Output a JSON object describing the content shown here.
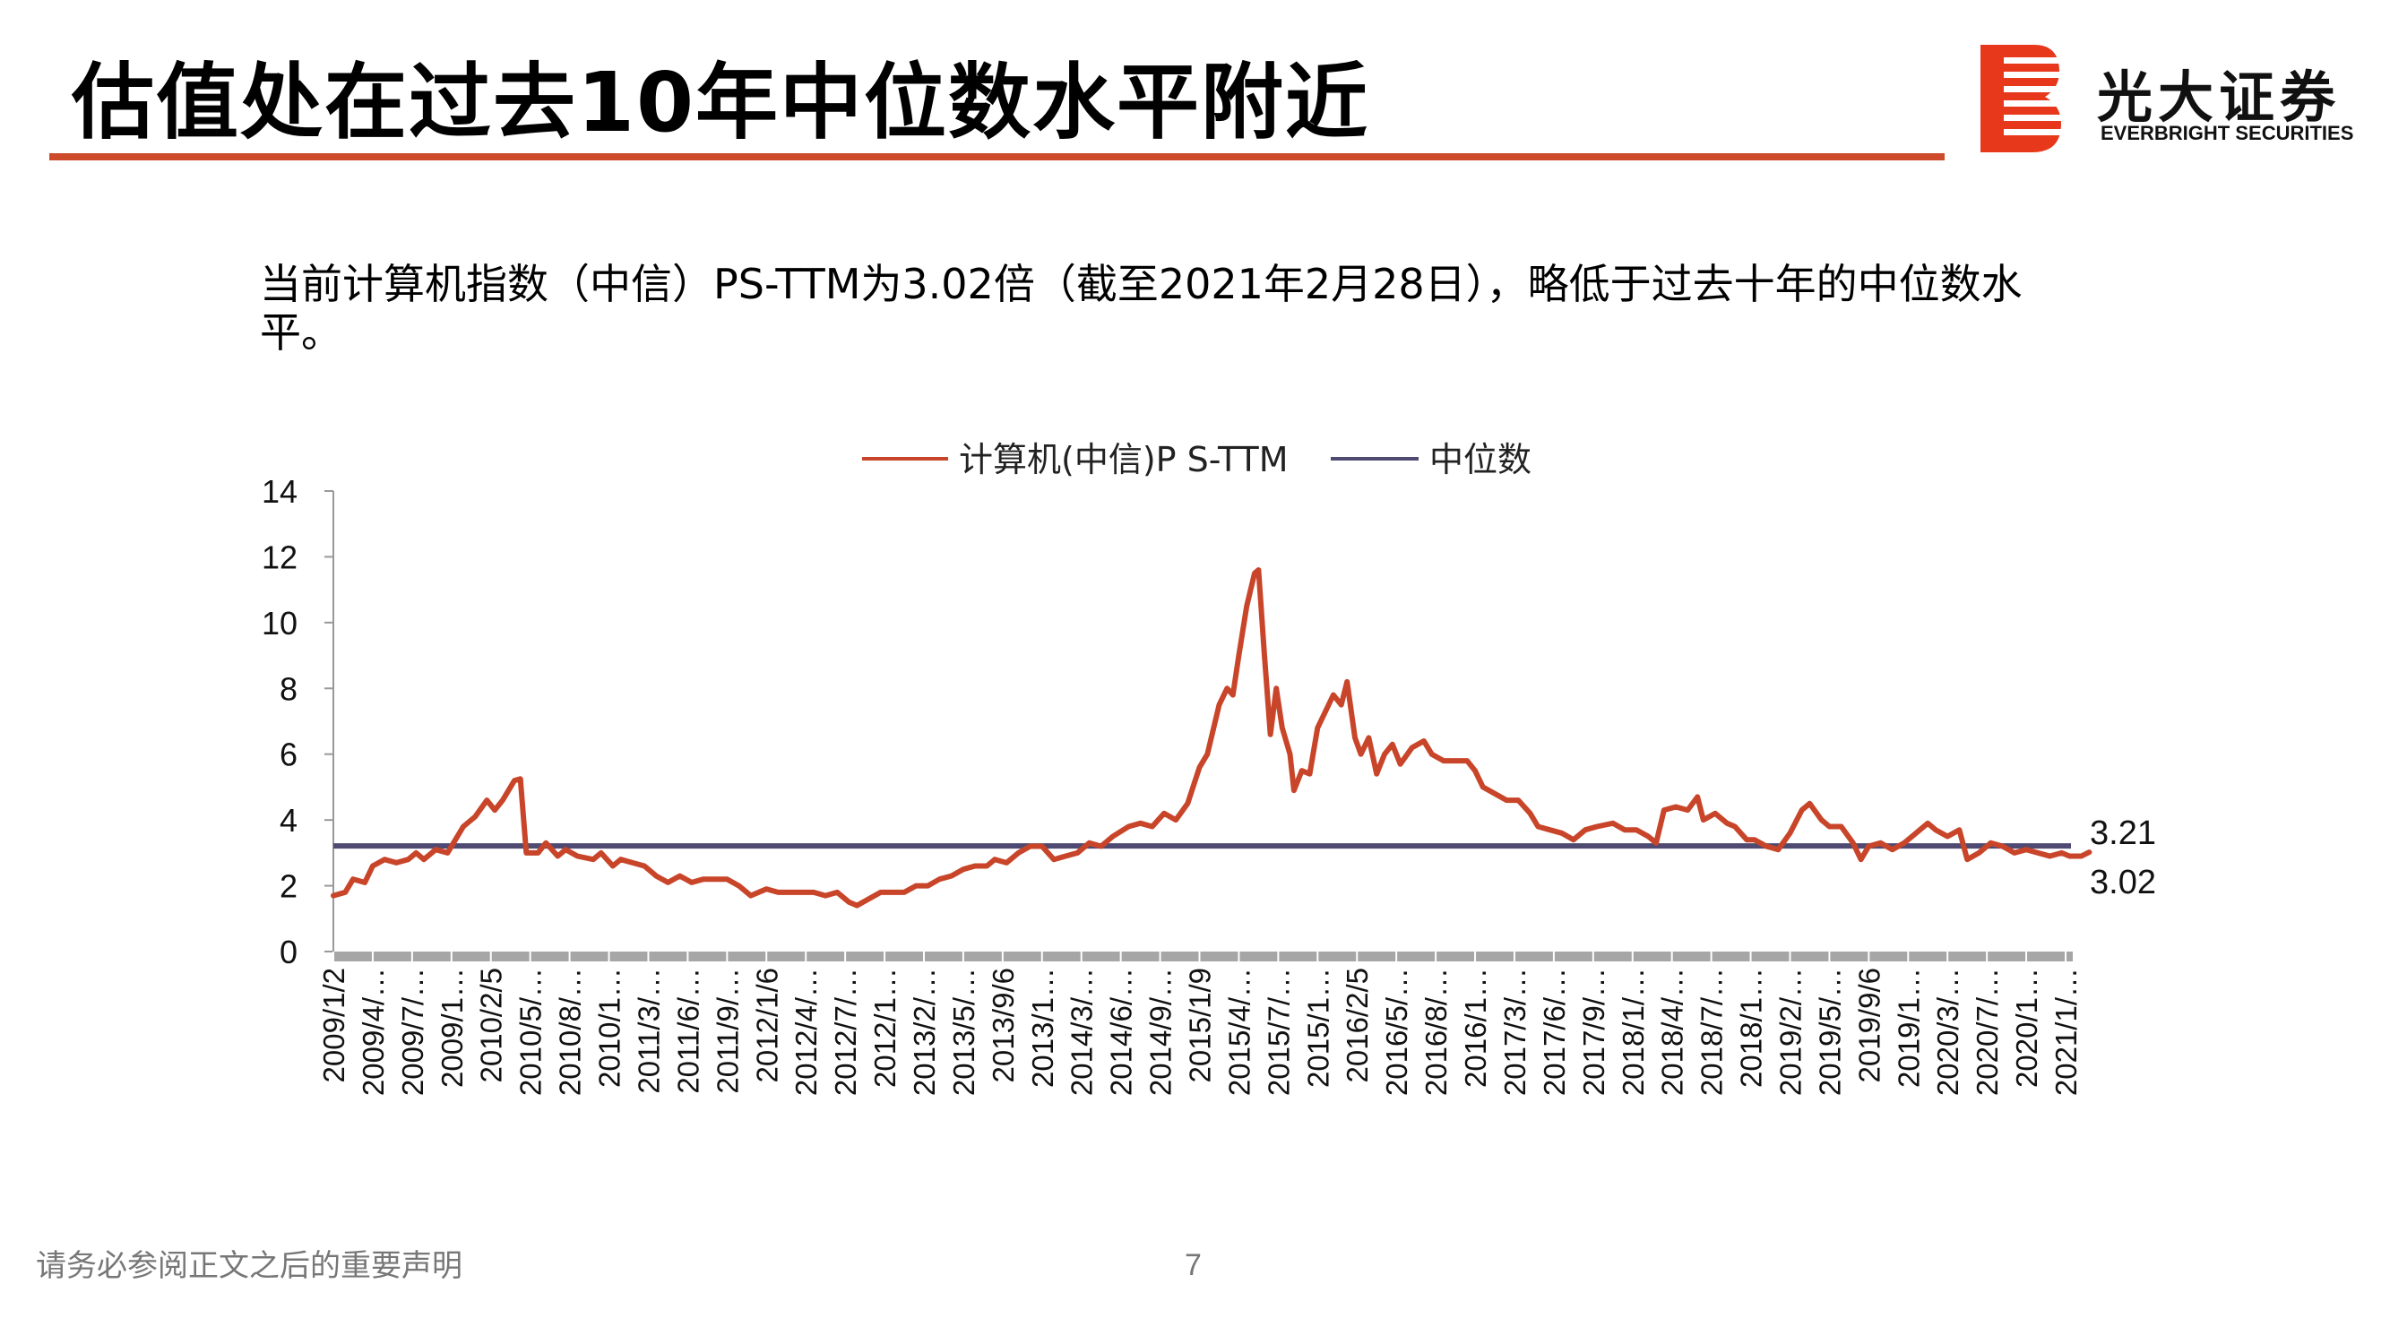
{
  "page": {
    "title": "估值处在过去10年中位数水平附近",
    "description": "当前计算机指数（中信）PS-TTM为3.02倍（截至2021年2月28日），略低于过去十年的中位数水平。",
    "footer_note": "请务必参阅正文之后的重要声明",
    "page_number": "7"
  },
  "logo": {
    "cn": "光大证券",
    "en": "EVERBRIGHT SECURITIES",
    "color": "#e8381c"
  },
  "chart_data": {
    "type": "line",
    "title": "",
    "xlabel": "",
    "ylabel": "",
    "ylim": [
      0,
      14
    ],
    "yticks": [
      "0",
      "2",
      "4",
      "6",
      "8",
      "10",
      "12",
      "14"
    ],
    "legend_position": "top-center",
    "categories": [
      "2009/1/2",
      "2009/4/…",
      "2009/7/…",
      "2009/1…",
      "2010/2/5",
      "2010/5/…",
      "2010/8/…",
      "2010/1…",
      "2011/3/…",
      "2011/6/…",
      "2011/9/…",
      "2012/1/6",
      "2012/4/…",
      "2012/7/…",
      "2012/1…",
      "2013/2/…",
      "2013/5/…",
      "2013/9/6",
      "2013/1…",
      "2014/3/…",
      "2014/6/…",
      "2014/9/…",
      "2015/1/9",
      "2015/4/…",
      "2015/7/…",
      "2015/1…",
      "2016/2/5",
      "2016/5/…",
      "2016/8/…",
      "2016/1…",
      "2017/3/…",
      "2017/6/…",
      "2017/9/…",
      "2018/1/…",
      "2018/4/…",
      "2018/7/…",
      "2018/1…",
      "2019/2/…",
      "2019/5/…",
      "2019/9/6",
      "2019/1…",
      "2020/3/…",
      "2020/7/…",
      "2020/1…",
      "2021/1/…"
    ],
    "series": [
      {
        "name": "计算机(中信)P S-TTM",
        "color": "#c8452a",
        "values": [
          [
            0,
            1.7
          ],
          [
            0.3,
            1.8
          ],
          [
            0.5,
            2.2
          ],
          [
            0.8,
            2.1
          ],
          [
            1.0,
            2.6
          ],
          [
            1.3,
            2.8
          ],
          [
            1.6,
            2.7
          ],
          [
            1.9,
            2.8
          ],
          [
            2.1,
            3.0
          ],
          [
            2.3,
            2.8
          ],
          [
            2.6,
            3.1
          ],
          [
            2.9,
            3.0
          ],
          [
            3.1,
            3.4
          ],
          [
            3.3,
            3.8
          ],
          [
            3.6,
            4.1
          ],
          [
            3.9,
            4.6
          ],
          [
            4.1,
            4.3
          ],
          [
            4.3,
            4.6
          ],
          [
            4.6,
            5.2
          ],
          [
            4.75,
            5.25
          ],
          [
            4.9,
            3.0
          ],
          [
            5.2,
            3.0
          ],
          [
            5.4,
            3.3
          ],
          [
            5.7,
            2.9
          ],
          [
            5.9,
            3.1
          ],
          [
            6.2,
            2.9
          ],
          [
            6.6,
            2.8
          ],
          [
            6.8,
            3.0
          ],
          [
            7.1,
            2.6
          ],
          [
            7.3,
            2.8
          ],
          [
            7.6,
            2.7
          ],
          [
            7.9,
            2.6
          ],
          [
            8.2,
            2.3
          ],
          [
            8.5,
            2.1
          ],
          [
            8.8,
            2.3
          ],
          [
            9.1,
            2.1
          ],
          [
            9.4,
            2.2
          ],
          [
            9.7,
            2.2
          ],
          [
            10.0,
            2.2
          ],
          [
            10.3,
            2.0
          ],
          [
            10.6,
            1.7
          ],
          [
            11.0,
            1.9
          ],
          [
            11.3,
            1.8
          ],
          [
            11.6,
            1.8
          ],
          [
            11.9,
            1.8
          ],
          [
            12.2,
            1.8
          ],
          [
            12.5,
            1.7
          ],
          [
            12.8,
            1.8
          ],
          [
            13.1,
            1.5
          ],
          [
            13.3,
            1.4
          ],
          [
            13.6,
            1.6
          ],
          [
            13.9,
            1.8
          ],
          [
            14.2,
            1.8
          ],
          [
            14.5,
            1.8
          ],
          [
            14.8,
            2.0
          ],
          [
            15.1,
            2.0
          ],
          [
            15.4,
            2.2
          ],
          [
            15.7,
            2.3
          ],
          [
            16.0,
            2.5
          ],
          [
            16.3,
            2.6
          ],
          [
            16.6,
            2.6
          ],
          [
            16.8,
            2.8
          ],
          [
            17.1,
            2.7
          ],
          [
            17.4,
            3.0
          ],
          [
            17.7,
            3.2
          ],
          [
            18.0,
            3.2
          ],
          [
            18.3,
            2.8
          ],
          [
            18.6,
            2.9
          ],
          [
            18.9,
            3.0
          ],
          [
            19.2,
            3.3
          ],
          [
            19.5,
            3.2
          ],
          [
            19.8,
            3.5
          ],
          [
            20.2,
            3.8
          ],
          [
            20.5,
            3.9
          ],
          [
            20.8,
            3.8
          ],
          [
            21.1,
            4.2
          ],
          [
            21.4,
            4.0
          ],
          [
            21.7,
            4.5
          ],
          [
            22.0,
            5.6
          ],
          [
            22.2,
            6.0
          ],
          [
            22.5,
            7.5
          ],
          [
            22.7,
            8.0
          ],
          [
            22.85,
            7.8
          ],
          [
            23.0,
            9.0
          ],
          [
            23.2,
            10.5
          ],
          [
            23.4,
            11.5
          ],
          [
            23.5,
            11.6
          ],
          [
            23.65,
            9.0
          ],
          [
            23.8,
            6.6
          ],
          [
            23.95,
            8.0
          ],
          [
            24.1,
            6.8
          ],
          [
            24.3,
            6.0
          ],
          [
            24.4,
            4.9
          ],
          [
            24.6,
            5.5
          ],
          [
            24.8,
            5.4
          ],
          [
            25.0,
            6.8
          ],
          [
            25.2,
            7.3
          ],
          [
            25.4,
            7.8
          ],
          [
            25.6,
            7.5
          ],
          [
            25.75,
            8.2
          ],
          [
            25.95,
            6.5
          ],
          [
            26.1,
            6.0
          ],
          [
            26.3,
            6.5
          ],
          [
            26.5,
            5.4
          ],
          [
            26.7,
            6.0
          ],
          [
            26.9,
            6.3
          ],
          [
            27.1,
            5.7
          ],
          [
            27.4,
            6.2
          ],
          [
            27.7,
            6.4
          ],
          [
            27.9,
            6.0
          ],
          [
            28.2,
            5.8
          ],
          [
            28.5,
            5.8
          ],
          [
            28.8,
            5.8
          ],
          [
            29.0,
            5.5
          ],
          [
            29.2,
            5.0
          ],
          [
            29.5,
            4.8
          ],
          [
            29.8,
            4.6
          ],
          [
            30.1,
            4.6
          ],
          [
            30.4,
            4.2
          ],
          [
            30.6,
            3.8
          ],
          [
            30.9,
            3.7
          ],
          [
            31.2,
            3.6
          ],
          [
            31.5,
            3.4
          ],
          [
            31.8,
            3.7
          ],
          [
            32.1,
            3.8
          ],
          [
            32.5,
            3.9
          ],
          [
            32.8,
            3.7
          ],
          [
            33.1,
            3.7
          ],
          [
            33.4,
            3.5
          ],
          [
            33.6,
            3.3
          ],
          [
            33.8,
            4.3
          ],
          [
            34.1,
            4.4
          ],
          [
            34.4,
            4.3
          ],
          [
            34.65,
            4.7
          ],
          [
            34.8,
            4.0
          ],
          [
            35.1,
            4.2
          ],
          [
            35.4,
            3.9
          ],
          [
            35.6,
            3.8
          ],
          [
            35.9,
            3.4
          ],
          [
            36.1,
            3.4
          ],
          [
            36.4,
            3.2
          ],
          [
            36.7,
            3.1
          ],
          [
            37.0,
            3.6
          ],
          [
            37.3,
            4.3
          ],
          [
            37.5,
            4.5
          ],
          [
            37.8,
            4.0
          ],
          [
            38.0,
            3.8
          ],
          [
            38.3,
            3.8
          ],
          [
            38.6,
            3.3
          ],
          [
            38.8,
            2.8
          ],
          [
            39.0,
            3.2
          ],
          [
            39.3,
            3.3
          ],
          [
            39.6,
            3.1
          ],
          [
            39.9,
            3.3
          ],
          [
            40.2,
            3.6
          ],
          [
            40.5,
            3.9
          ],
          [
            40.7,
            3.7
          ],
          [
            41.0,
            3.5
          ],
          [
            41.3,
            3.7
          ],
          [
            41.5,
            2.8
          ],
          [
            41.8,
            3.0
          ],
          [
            42.1,
            3.3
          ],
          [
            42.4,
            3.2
          ],
          [
            42.7,
            3.0
          ],
          [
            43.0,
            3.1
          ],
          [
            43.3,
            3.0
          ],
          [
            43.6,
            2.9
          ],
          [
            43.9,
            3.0
          ],
          [
            44.1,
            2.9
          ],
          [
            44.4,
            2.9
          ],
          [
            44.6,
            3.02
          ]
        ]
      },
      {
        "name": "中位数",
        "color": "#4f4a72",
        "value": 3.21
      }
    ],
    "annotations": [
      {
        "text": "3.21",
        "value": 3.21
      },
      {
        "text": "3.02",
        "value": 3.02
      }
    ]
  }
}
